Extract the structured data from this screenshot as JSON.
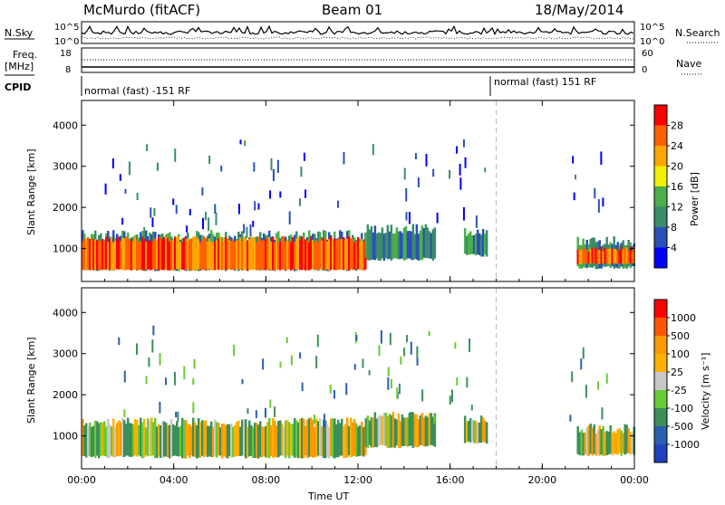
{
  "header": {
    "station": "McMurdo (fitACF)",
    "beam": "Beam 01",
    "date": "18/May/2014"
  },
  "noise_panel": {
    "left_label": "N.Sky",
    "right_label": "N.Search",
    "left_ticks": [
      "10^5",
      "10^0"
    ],
    "right_ticks": [
      "10^5",
      "10^0"
    ]
  },
  "freq_panel": {
    "left_label_line1": "Freq.",
    "left_label_line2": "[MHz]",
    "left_ticks": [
      "18",
      "8"
    ],
    "right_ticks": [
      "60",
      "0"
    ],
    "right_label": "Nave"
  },
  "cpid_panel": {
    "label": "CPID",
    "segments": [
      {
        "text": "normal (fast) -151 RF",
        "start_hour": 0
      },
      {
        "text": "normal (fast) 151 RF",
        "start_hour": 18
      }
    ]
  },
  "colors": {
    "power": [
      "#0000ff",
      "#2b50b8",
      "#3c8c69",
      "#4bb04b",
      "#f0f000",
      "#ffa500",
      "#ff6000",
      "#ff0000"
    ],
    "velocity": [
      "#ff0000",
      "#ff5500",
      "#ff9900",
      "#ffb000",
      "#c8c8c8",
      "#66cc33",
      "#3d8f5a",
      "#2a5fb0",
      "#2040c0"
    ]
  },
  "chart_data": [
    {
      "type": "heatmap",
      "name": "Power panel",
      "ylabel": "Slant Range [km]",
      "xlabel": "",
      "xlim": [
        0,
        24
      ],
      "ylim": [
        200,
        4600
      ],
      "x_ticks": [
        "00:00",
        "04:00",
        "08:00",
        "12:00",
        "16:00",
        "20:00",
        "00:00"
      ],
      "y_ticks": [
        1000,
        2000,
        3000,
        4000
      ],
      "colorbar": {
        "label": "Power [dB]",
        "ticks": [
          "4",
          "8",
          "12",
          "16",
          "20",
          "24",
          "28"
        ]
      },
      "band": {
        "segments": [
          {
            "x0": 0.0,
            "x1": 12.3,
            "ymin": 450,
            "ymax": 1450,
            "core_min": 500,
            "core_max": 1150
          },
          {
            "x0": 12.3,
            "x1": 15.3,
            "ymin": 700,
            "ymax": 1600,
            "core_min": 0,
            "core_max": 0
          },
          {
            "x0": 16.6,
            "x1": 17.6,
            "ymin": 800,
            "ymax": 1500,
            "core_min": 0,
            "core_max": 0
          },
          {
            "x0": 21.5,
            "x1": 24.0,
            "ymin": 500,
            "ymax": 1300,
            "core_min": 650,
            "core_max": 900
          }
        ]
      },
      "gap_line_hour": 18
    },
    {
      "type": "heatmap",
      "name": "Velocity panel",
      "ylabel": "Slant Range [km]",
      "xlabel": "Time UT",
      "xlim": [
        0,
        24
      ],
      "ylim": [
        200,
        4600
      ],
      "x_ticks": [
        "00:00",
        "04:00",
        "08:00",
        "12:00",
        "16:00",
        "20:00",
        "00:00"
      ],
      "y_ticks": [
        1000,
        2000,
        3000,
        4000
      ],
      "colorbar": {
        "label": "Velocity [m s⁻¹]",
        "ticks": [
          "1000",
          "500",
          "100",
          "25",
          "-25",
          "-100",
          "-500",
          "-1000"
        ]
      },
      "band": {
        "segments": [
          {
            "x0": 0.0,
            "x1": 12.3,
            "ymin": 450,
            "ymax": 1450
          },
          {
            "x0": 12.3,
            "x1": 15.3,
            "ymin": 700,
            "ymax": 1600
          },
          {
            "x0": 16.6,
            "x1": 17.6,
            "ymin": 800,
            "ymax": 1500
          },
          {
            "x0": 21.5,
            "x1": 24.0,
            "ymin": 500,
            "ymax": 1300
          }
        ]
      },
      "gap_line_hour": 18
    }
  ]
}
